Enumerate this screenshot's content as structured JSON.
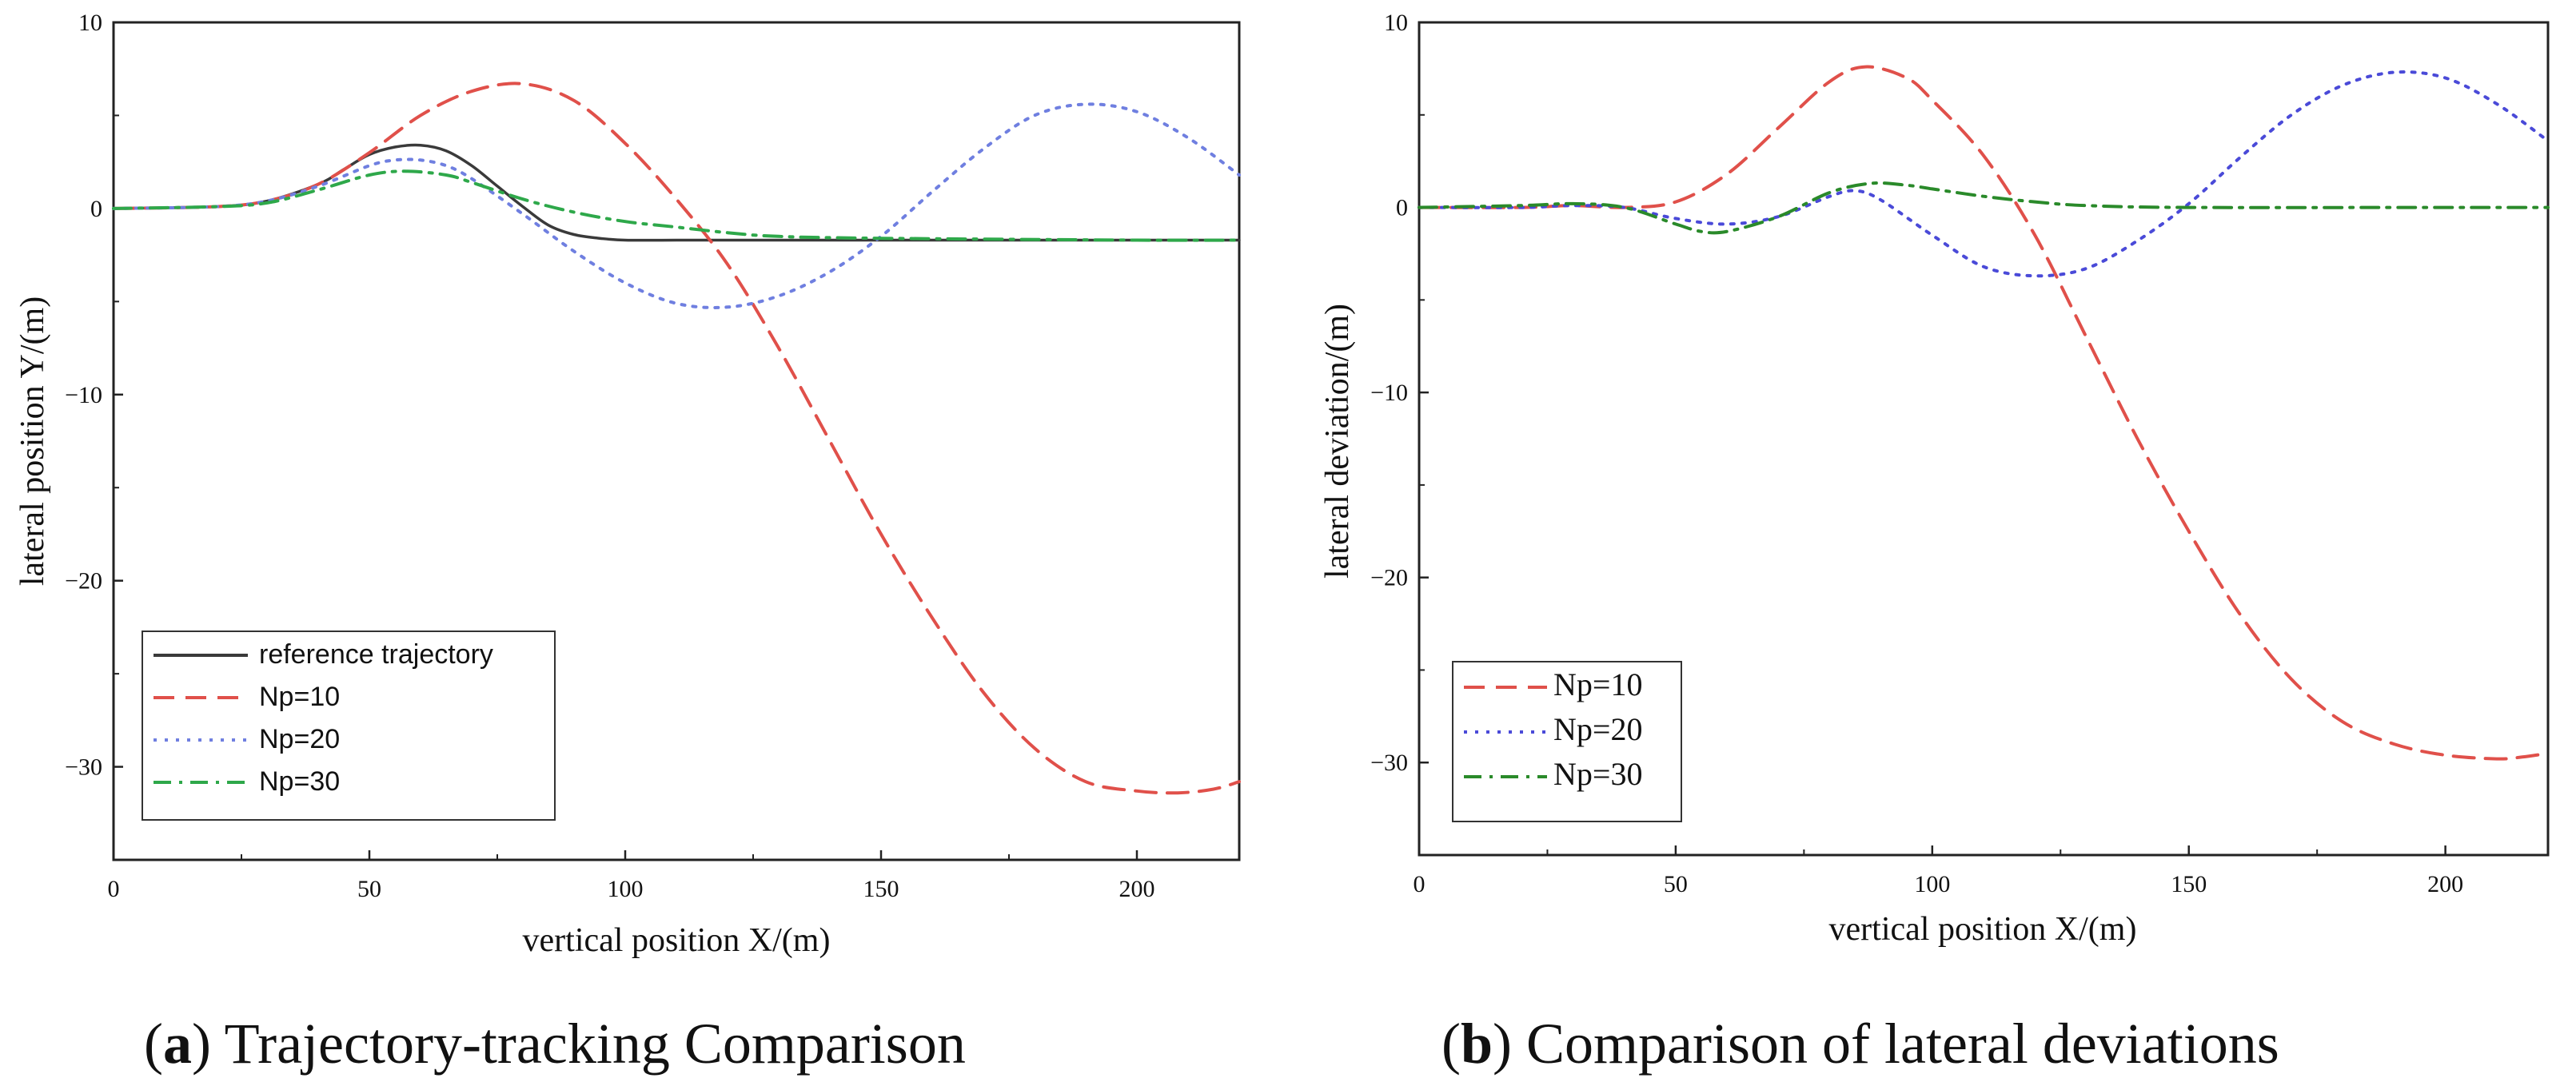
{
  "captions": [
    {
      "letter": "a",
      "text": "Trajectory-tracking Comparison"
    },
    {
      "letter": "b",
      "text": "Comparison of lateral deviations"
    }
  ],
  "chart_data": [
    {
      "type": "line",
      "title": "",
      "xlabel": "vertical position X/(m)",
      "ylabel": "lateral position Y/(m)",
      "xlim": [
        0,
        220
      ],
      "ylim": [
        -35,
        10
      ],
      "xticks": [
        0,
        50,
        100,
        150,
        200
      ],
      "yticks": [
        10,
        0,
        -10,
        -20,
        -30
      ],
      "legend_position": "bottom-left",
      "series": [
        {
          "name": "reference trajectory",
          "color": "#3a3a3a",
          "style": "solid",
          "x": [
            0,
            20,
            30,
            40,
            45,
            50,
            55,
            60,
            65,
            70,
            75,
            80,
            85,
            90,
            95,
            100,
            110,
            120,
            150,
            200,
            220
          ],
          "y": [
            0,
            0.1,
            0.4,
            1.3,
            2.1,
            2.9,
            3.3,
            3.4,
            3.1,
            2.3,
            1.2,
            0.1,
            -0.9,
            -1.4,
            -1.6,
            -1.7,
            -1.7,
            -1.7,
            -1.7,
            -1.7,
            -1.7
          ]
        },
        {
          "name": "Np=10",
          "color": "#e0504a",
          "style": "dashed",
          "x": [
            0,
            20,
            30,
            40,
            50,
            60,
            70,
            80,
            90,
            100,
            110,
            120,
            130,
            140,
            150,
            160,
            170,
            180,
            190,
            200,
            208,
            215,
            220
          ],
          "y": [
            0,
            0.1,
            0.4,
            1.3,
            3.0,
            5.0,
            6.3,
            6.7,
            5.8,
            3.5,
            0.5,
            -3.0,
            -7.5,
            -12.5,
            -17.5,
            -22.0,
            -26.0,
            -29.0,
            -30.8,
            -31.3,
            -31.4,
            -31.2,
            -30.8
          ]
        },
        {
          "name": "Np=20",
          "color": "#6f7fe0",
          "style": "dotted",
          "x": [
            0,
            20,
            30,
            40,
            50,
            55,
            60,
            65,
            70,
            80,
            90,
            100,
            110,
            120,
            130,
            140,
            150,
            160,
            170,
            180,
            190,
            200,
            210,
            220
          ],
          "y": [
            0,
            0.1,
            0.4,
            1.2,
            2.3,
            2.6,
            2.6,
            2.3,
            1.6,
            -0.3,
            -2.3,
            -4.0,
            -5.1,
            -5.3,
            -4.7,
            -3.4,
            -1.5,
            0.9,
            3.2,
            5.0,
            5.6,
            5.2,
            3.8,
            1.8
          ]
        },
        {
          "name": "Np=30",
          "color": "#2ea84a",
          "style": "dashdot",
          "x": [
            0,
            20,
            30,
            40,
            50,
            57,
            65,
            70,
            80,
            90,
            100,
            110,
            120,
            130,
            150,
            200,
            220
          ],
          "y": [
            0,
            0.1,
            0.3,
            1.0,
            1.8,
            2.0,
            1.8,
            1.4,
            0.5,
            -0.2,
            -0.7,
            -1.0,
            -1.3,
            -1.5,
            -1.6,
            -1.7,
            -1.7
          ]
        }
      ]
    },
    {
      "type": "line",
      "title": "",
      "xlabel": "vertical position X/(m)",
      "ylabel": "lateral deviation/(m)",
      "xlim": [
        0,
        220
      ],
      "ylim": [
        -35,
        10
      ],
      "xticks": [
        0,
        50,
        100,
        150,
        200
      ],
      "yticks": [
        10,
        0,
        -10,
        -20,
        -30
      ],
      "legend_position": "bottom-left",
      "series": [
        {
          "name": "Np=10",
          "color": "#e0504a",
          "style": "dashed",
          "x": [
            0,
            20,
            30,
            40,
            50,
            60,
            70,
            80,
            87,
            95,
            100,
            110,
            120,
            130,
            140,
            150,
            160,
            170,
            180,
            190,
            200,
            210,
            215,
            220
          ],
          "y": [
            0,
            0,
            0.1,
            0,
            0.3,
            1.8,
            4.3,
            6.8,
            7.6,
            7.0,
            5.8,
            2.8,
            -1.5,
            -7.0,
            -12.5,
            -17.5,
            -22.0,
            -25.5,
            -27.8,
            -29.0,
            -29.6,
            -29.8,
            -29.7,
            -29.5
          ]
        },
        {
          "name": "Np=20",
          "color": "#4a4ad8",
          "style": "dotted",
          "x": [
            0,
            20,
            30,
            40,
            50,
            60,
            70,
            80,
            85,
            90,
            100,
            110,
            120,
            130,
            140,
            150,
            160,
            170,
            180,
            190,
            200,
            210,
            220
          ],
          "y": [
            0,
            0,
            0.1,
            0,
            -0.6,
            -0.9,
            -0.5,
            0.6,
            0.9,
            0.4,
            -1.5,
            -3.2,
            -3.7,
            -3.3,
            -1.8,
            0.2,
            2.7,
            5.0,
            6.6,
            7.3,
            7.0,
            5.6,
            3.6
          ]
        },
        {
          "name": "Np=30",
          "color": "#2a8a2a",
          "style": "dashdot",
          "x": [
            0,
            20,
            30,
            40,
            50,
            55,
            60,
            70,
            80,
            88,
            95,
            100,
            110,
            120,
            130,
            150,
            200,
            220
          ],
          "y": [
            0,
            0.1,
            0.2,
            0,
            -0.9,
            -1.3,
            -1.3,
            -0.5,
            0.8,
            1.3,
            1.2,
            1.0,
            0.6,
            0.3,
            0.1,
            0,
            0,
            0
          ]
        }
      ]
    }
  ]
}
